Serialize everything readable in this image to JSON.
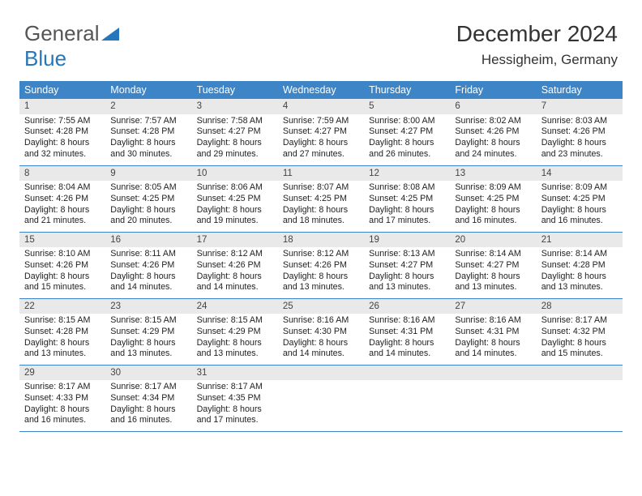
{
  "logo": {
    "word1": "General",
    "word2": "Blue"
  },
  "header": {
    "title": "December 2024",
    "subtitle": "Hessigheim, Germany"
  },
  "colors": {
    "header_bg": "#3d85c6",
    "header_fg": "#ffffff",
    "daynum_bg": "#e9e9e9",
    "rule": "#3d85c6",
    "logo_blue": "#2676bb"
  },
  "days_of_week": [
    "Sunday",
    "Monday",
    "Tuesday",
    "Wednesday",
    "Thursday",
    "Friday",
    "Saturday"
  ],
  "weeks": [
    [
      {
        "n": "1",
        "sunrise": "Sunrise: 7:55 AM",
        "sunset": "Sunset: 4:28 PM",
        "day1": "Daylight: 8 hours",
        "day2": "and 32 minutes."
      },
      {
        "n": "2",
        "sunrise": "Sunrise: 7:57 AM",
        "sunset": "Sunset: 4:28 PM",
        "day1": "Daylight: 8 hours",
        "day2": "and 30 minutes."
      },
      {
        "n": "3",
        "sunrise": "Sunrise: 7:58 AM",
        "sunset": "Sunset: 4:27 PM",
        "day1": "Daylight: 8 hours",
        "day2": "and 29 minutes."
      },
      {
        "n": "4",
        "sunrise": "Sunrise: 7:59 AM",
        "sunset": "Sunset: 4:27 PM",
        "day1": "Daylight: 8 hours",
        "day2": "and 27 minutes."
      },
      {
        "n": "5",
        "sunrise": "Sunrise: 8:00 AM",
        "sunset": "Sunset: 4:27 PM",
        "day1": "Daylight: 8 hours",
        "day2": "and 26 minutes."
      },
      {
        "n": "6",
        "sunrise": "Sunrise: 8:02 AM",
        "sunset": "Sunset: 4:26 PM",
        "day1": "Daylight: 8 hours",
        "day2": "and 24 minutes."
      },
      {
        "n": "7",
        "sunrise": "Sunrise: 8:03 AM",
        "sunset": "Sunset: 4:26 PM",
        "day1": "Daylight: 8 hours",
        "day2": "and 23 minutes."
      }
    ],
    [
      {
        "n": "8",
        "sunrise": "Sunrise: 8:04 AM",
        "sunset": "Sunset: 4:26 PM",
        "day1": "Daylight: 8 hours",
        "day2": "and 21 minutes."
      },
      {
        "n": "9",
        "sunrise": "Sunrise: 8:05 AM",
        "sunset": "Sunset: 4:25 PM",
        "day1": "Daylight: 8 hours",
        "day2": "and 20 minutes."
      },
      {
        "n": "10",
        "sunrise": "Sunrise: 8:06 AM",
        "sunset": "Sunset: 4:25 PM",
        "day1": "Daylight: 8 hours",
        "day2": "and 19 minutes."
      },
      {
        "n": "11",
        "sunrise": "Sunrise: 8:07 AM",
        "sunset": "Sunset: 4:25 PM",
        "day1": "Daylight: 8 hours",
        "day2": "and 18 minutes."
      },
      {
        "n": "12",
        "sunrise": "Sunrise: 8:08 AM",
        "sunset": "Sunset: 4:25 PM",
        "day1": "Daylight: 8 hours",
        "day2": "and 17 minutes."
      },
      {
        "n": "13",
        "sunrise": "Sunrise: 8:09 AM",
        "sunset": "Sunset: 4:25 PM",
        "day1": "Daylight: 8 hours",
        "day2": "and 16 minutes."
      },
      {
        "n": "14",
        "sunrise": "Sunrise: 8:09 AM",
        "sunset": "Sunset: 4:25 PM",
        "day1": "Daylight: 8 hours",
        "day2": "and 16 minutes."
      }
    ],
    [
      {
        "n": "15",
        "sunrise": "Sunrise: 8:10 AM",
        "sunset": "Sunset: 4:26 PM",
        "day1": "Daylight: 8 hours",
        "day2": "and 15 minutes."
      },
      {
        "n": "16",
        "sunrise": "Sunrise: 8:11 AM",
        "sunset": "Sunset: 4:26 PM",
        "day1": "Daylight: 8 hours",
        "day2": "and 14 minutes."
      },
      {
        "n": "17",
        "sunrise": "Sunrise: 8:12 AM",
        "sunset": "Sunset: 4:26 PM",
        "day1": "Daylight: 8 hours",
        "day2": "and 14 minutes."
      },
      {
        "n": "18",
        "sunrise": "Sunrise: 8:12 AM",
        "sunset": "Sunset: 4:26 PM",
        "day1": "Daylight: 8 hours",
        "day2": "and 13 minutes."
      },
      {
        "n": "19",
        "sunrise": "Sunrise: 8:13 AM",
        "sunset": "Sunset: 4:27 PM",
        "day1": "Daylight: 8 hours",
        "day2": "and 13 minutes."
      },
      {
        "n": "20",
        "sunrise": "Sunrise: 8:14 AM",
        "sunset": "Sunset: 4:27 PM",
        "day1": "Daylight: 8 hours",
        "day2": "and 13 minutes."
      },
      {
        "n": "21",
        "sunrise": "Sunrise: 8:14 AM",
        "sunset": "Sunset: 4:28 PM",
        "day1": "Daylight: 8 hours",
        "day2": "and 13 minutes."
      }
    ],
    [
      {
        "n": "22",
        "sunrise": "Sunrise: 8:15 AM",
        "sunset": "Sunset: 4:28 PM",
        "day1": "Daylight: 8 hours",
        "day2": "and 13 minutes."
      },
      {
        "n": "23",
        "sunrise": "Sunrise: 8:15 AM",
        "sunset": "Sunset: 4:29 PM",
        "day1": "Daylight: 8 hours",
        "day2": "and 13 minutes."
      },
      {
        "n": "24",
        "sunrise": "Sunrise: 8:15 AM",
        "sunset": "Sunset: 4:29 PM",
        "day1": "Daylight: 8 hours",
        "day2": "and 13 minutes."
      },
      {
        "n": "25",
        "sunrise": "Sunrise: 8:16 AM",
        "sunset": "Sunset: 4:30 PM",
        "day1": "Daylight: 8 hours",
        "day2": "and 14 minutes."
      },
      {
        "n": "26",
        "sunrise": "Sunrise: 8:16 AM",
        "sunset": "Sunset: 4:31 PM",
        "day1": "Daylight: 8 hours",
        "day2": "and 14 minutes."
      },
      {
        "n": "27",
        "sunrise": "Sunrise: 8:16 AM",
        "sunset": "Sunset: 4:31 PM",
        "day1": "Daylight: 8 hours",
        "day2": "and 14 minutes."
      },
      {
        "n": "28",
        "sunrise": "Sunrise: 8:17 AM",
        "sunset": "Sunset: 4:32 PM",
        "day1": "Daylight: 8 hours",
        "day2": "and 15 minutes."
      }
    ],
    [
      {
        "n": "29",
        "sunrise": "Sunrise: 8:17 AM",
        "sunset": "Sunset: 4:33 PM",
        "day1": "Daylight: 8 hours",
        "day2": "and 16 minutes."
      },
      {
        "n": "30",
        "sunrise": "Sunrise: 8:17 AM",
        "sunset": "Sunset: 4:34 PM",
        "day1": "Daylight: 8 hours",
        "day2": "and 16 minutes."
      },
      {
        "n": "31",
        "sunrise": "Sunrise: 8:17 AM",
        "sunset": "Sunset: 4:35 PM",
        "day1": "Daylight: 8 hours",
        "day2": "and 17 minutes."
      },
      null,
      null,
      null,
      null
    ]
  ]
}
